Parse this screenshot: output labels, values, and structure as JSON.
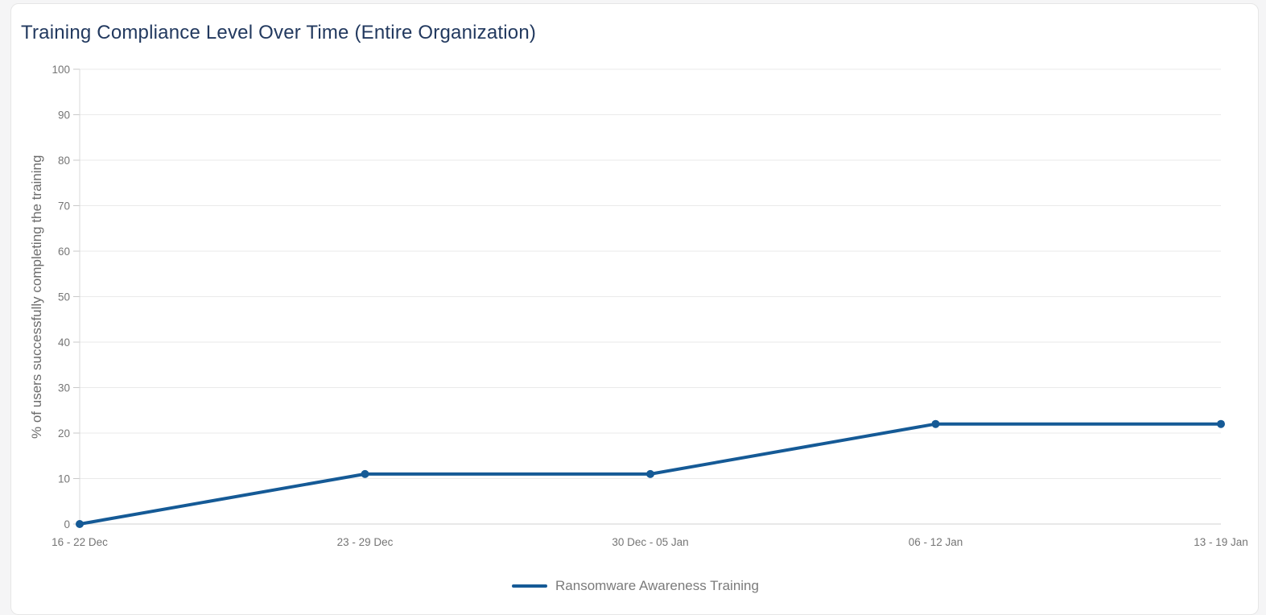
{
  "page": {
    "title": "Training Compliance Level Over Time (Entire Organization)"
  },
  "chart_data": {
    "type": "line",
    "title": "Training Compliance Level Over Time (Entire Organization)",
    "categories": [
      "16 - 22 Dec",
      "23 - 29 Dec",
      "30 Dec - 05 Jan",
      "06 - 12 Jan",
      "13 - 19 Jan"
    ],
    "series": [
      {
        "name": "Ransomware Awareness Training",
        "values": [
          0,
          11,
          11,
          22,
          22
        ]
      }
    ],
    "xlabel": "",
    "ylabel": "% of users successfully completing the training",
    "ylim": [
      0,
      100
    ],
    "yticks": [
      0,
      10,
      20,
      30,
      40,
      50,
      60,
      70,
      80,
      90,
      100
    ],
    "grid": "horizontal",
    "legend_position": "bottom",
    "marker": "circle"
  },
  "legend": {
    "items": [
      {
        "label": "Ransomware Awareness Training",
        "color": "#155a96"
      }
    ]
  },
  "colors": {
    "line": "#155a96",
    "title": "#22395f",
    "axis_label": "#757575"
  }
}
